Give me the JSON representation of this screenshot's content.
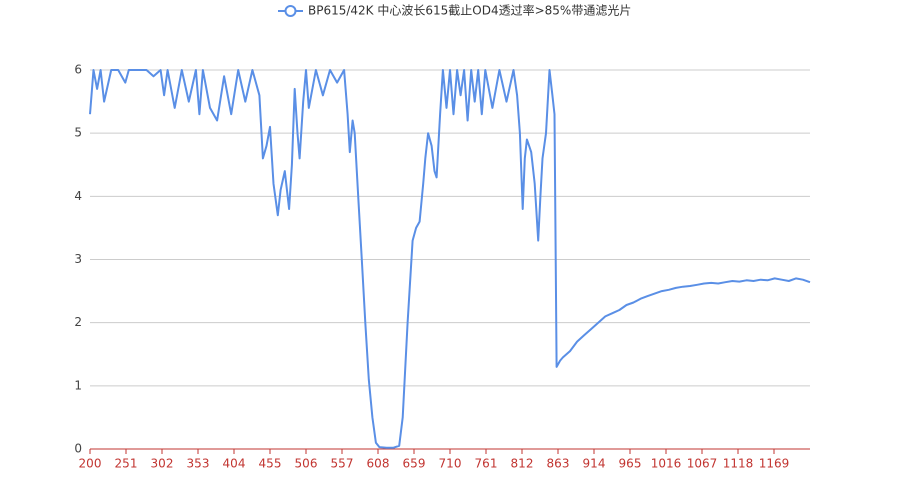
{
  "chart_data": {
    "type": "line",
    "x": [
      200,
      205,
      210,
      215,
      220,
      230,
      240,
      250,
      255,
      260,
      270,
      280,
      290,
      300,
      305,
      310,
      320,
      330,
      340,
      350,
      355,
      360,
      370,
      380,
      390,
      400,
      410,
      420,
      430,
      440,
      445,
      450,
      455,
      460,
      466,
      470,
      476,
      482,
      486,
      490,
      494,
      497,
      502,
      506,
      510,
      520,
      530,
      540,
      550,
      560,
      565,
      568,
      572,
      575,
      580,
      585,
      590,
      595,
      600,
      605,
      610,
      620,
      630,
      638,
      643,
      650,
      657,
      662,
      667,
      672,
      675,
      679,
      684,
      688,
      691,
      696,
      700,
      705,
      710,
      715,
      720,
      725,
      730,
      735,
      740,
      745,
      750,
      755,
      760,
      770,
      780,
      790,
      800,
      805,
      809,
      813,
      816,
      819,
      822,
      825,
      830,
      835,
      838,
      841,
      846,
      851,
      855,
      858,
      861,
      866,
      870,
      880,
      890,
      900,
      910,
      920,
      930,
      940,
      950,
      960,
      970,
      980,
      990,
      1000,
      1010,
      1020,
      1030,
      1040,
      1050,
      1060,
      1070,
      1080,
      1090,
      1100,
      1110,
      1120,
      1130,
      1140,
      1150,
      1160,
      1170,
      1180,
      1190,
      1200,
      1210,
      1220
    ],
    "series": [
      {
        "name": "BP615/42K 中心波长615截止OD4透过率>85%带通滤光片",
        "color": "#5a8fe6",
        "values": [
          5.3,
          6,
          5.7,
          6,
          5.5,
          6,
          6,
          5.8,
          6,
          6,
          6,
          6,
          5.9,
          6,
          5.6,
          6,
          5.4,
          6,
          5.5,
          6,
          5.3,
          6,
          5.4,
          5.2,
          5.9,
          5.3,
          6,
          5.5,
          6,
          5.6,
          4.6,
          4.8,
          5.1,
          4.2,
          3.7,
          4.1,
          4.4,
          3.8,
          4.5,
          5.7,
          5.0,
          4.6,
          5.5,
          6,
          5.4,
          6,
          5.6,
          6,
          5.8,
          6,
          5.3,
          4.7,
          5.2,
          5.0,
          4.0,
          3.0,
          2.0,
          1.1,
          0.5,
          0.1,
          0.03,
          0.02,
          0.02,
          0.05,
          0.5,
          2.0,
          3.3,
          3.5,
          3.6,
          4.2,
          4.6,
          5.0,
          4.8,
          4.4,
          4.3,
          5.3,
          6,
          5.4,
          6,
          5.3,
          6,
          5.6,
          6,
          5.2,
          6,
          5.5,
          6,
          5.3,
          6,
          5.4,
          6,
          5.5,
          6,
          5.6,
          5.0,
          3.8,
          4.6,
          4.9,
          4.8,
          4.7,
          4.2,
          3.3,
          4.0,
          4.6,
          5.0,
          6,
          5.6,
          5.3,
          1.3,
          1.4,
          1.45,
          1.55,
          1.7,
          1.8,
          1.9,
          2.0,
          2.1,
          2.15,
          2.2,
          2.28,
          2.32,
          2.38,
          2.42,
          2.46,
          2.5,
          2.52,
          2.55,
          2.57,
          2.58,
          2.6,
          2.62,
          2.63,
          2.62,
          2.64,
          2.66,
          2.65,
          2.67,
          2.66,
          2.68,
          2.67,
          2.7,
          2.68,
          2.66,
          2.7,
          2.68,
          2.64
        ]
      }
    ],
    "xlim": [
      200,
      1220
    ],
    "xticks": [
      200,
      251,
      302,
      353,
      404,
      455,
      506,
      557,
      608,
      659,
      710,
      761,
      812,
      863,
      914,
      965,
      1016,
      1067,
      1118,
      1169
    ],
    "ylim": [
      0,
      6
    ],
    "yticks": [
      0,
      1,
      2,
      3,
      4,
      5,
      6
    ],
    "grid": true,
    "legend": "top"
  }
}
